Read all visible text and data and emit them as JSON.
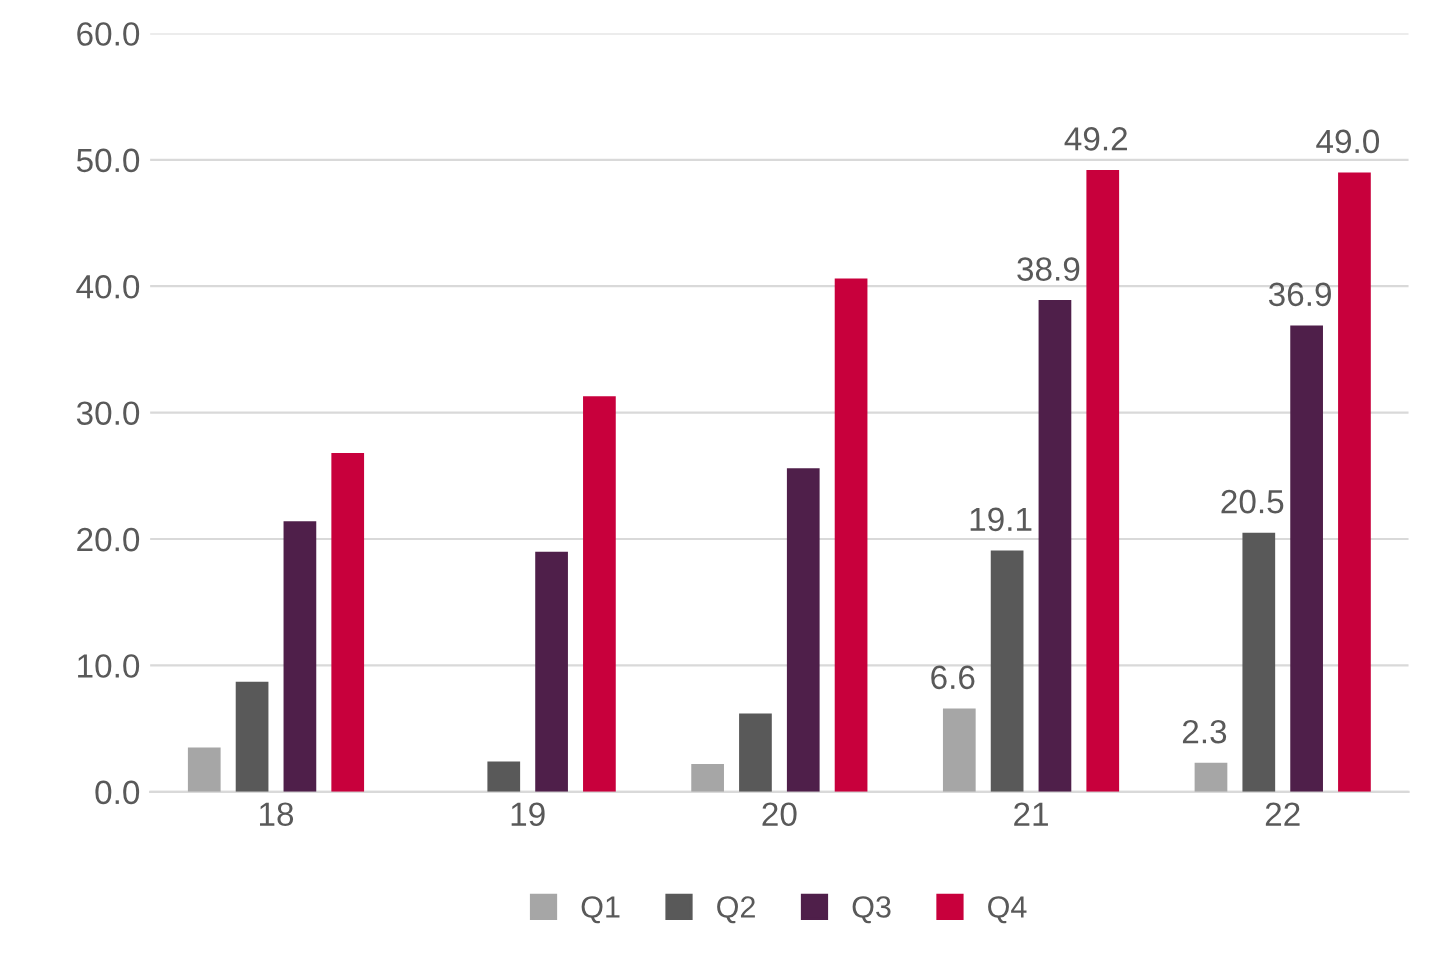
{
  "chart_data": {
    "type": "bar",
    "categories": [
      "18",
      "19",
      "20",
      "21",
      "22"
    ],
    "series": [
      {
        "name": "Q1",
        "color": "#a6a6a6",
        "values": [
          3.5,
          null,
          2.2,
          6.6,
          2.3
        ],
        "value_labels": [
          null,
          null,
          null,
          "6.6",
          "2.3"
        ]
      },
      {
        "name": "Q2",
        "color": "#595959",
        "values": [
          8.7,
          2.4,
          6.2,
          19.1,
          20.5
        ],
        "value_labels": [
          null,
          null,
          null,
          "19.1",
          "20.5"
        ]
      },
      {
        "name": "Q3",
        "color": "#4f1f4a",
        "values": [
          21.4,
          19.0,
          25.6,
          38.9,
          36.9
        ],
        "value_labels": [
          null,
          null,
          null,
          "38.9",
          "36.9"
        ]
      },
      {
        "name": "Q4",
        "color": "#c8003c",
        "values": [
          26.8,
          31.3,
          40.6,
          49.2,
          49.0
        ],
        "value_labels": [
          null,
          null,
          null,
          "49.2",
          "49.0"
        ]
      }
    ],
    "ylim": [
      0,
      60
    ],
    "yticks": [
      {
        "value": 0,
        "label": "0.0"
      },
      {
        "value": 10,
        "label": "10.0"
      },
      {
        "value": 20,
        "label": "20.0"
      },
      {
        "value": 30,
        "label": "30.0"
      },
      {
        "value": 40,
        "label": "40.0"
      },
      {
        "value": 50,
        "label": "50.0"
      },
      {
        "value": 60,
        "label": "60.0"
      }
    ],
    "grid": "y",
    "legend": "bottom"
  }
}
